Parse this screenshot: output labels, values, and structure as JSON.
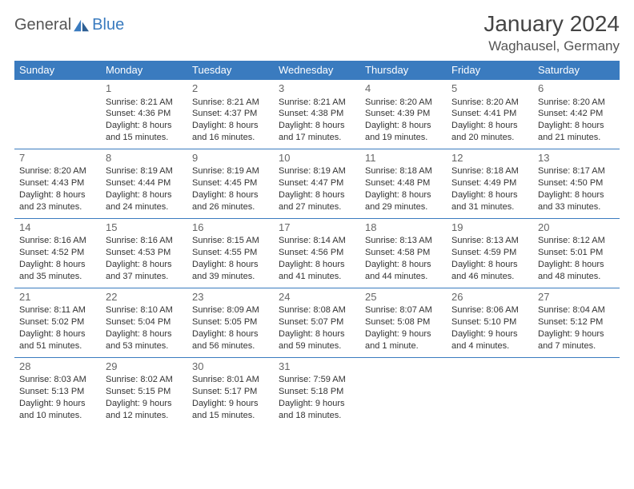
{
  "logo": {
    "part1": "General",
    "part2": "Blue"
  },
  "title": "January 2024",
  "location": "Waghausel, Germany",
  "colors": {
    "header_bg": "#3a7bbf",
    "header_text": "#ffffff",
    "logo_gray": "#555555",
    "logo_blue": "#3a7bbf",
    "text": "#333333",
    "border": "#3a7bbf"
  },
  "weekdays": [
    "Sunday",
    "Monday",
    "Tuesday",
    "Wednesday",
    "Thursday",
    "Friday",
    "Saturday"
  ],
  "weeks": [
    [
      null,
      {
        "n": "1",
        "sr": "Sunrise: 8:21 AM",
        "ss": "Sunset: 4:36 PM",
        "dl": "Daylight: 8 hours and 15 minutes."
      },
      {
        "n": "2",
        "sr": "Sunrise: 8:21 AM",
        "ss": "Sunset: 4:37 PM",
        "dl": "Daylight: 8 hours and 16 minutes."
      },
      {
        "n": "3",
        "sr": "Sunrise: 8:21 AM",
        "ss": "Sunset: 4:38 PM",
        "dl": "Daylight: 8 hours and 17 minutes."
      },
      {
        "n": "4",
        "sr": "Sunrise: 8:20 AM",
        "ss": "Sunset: 4:39 PM",
        "dl": "Daylight: 8 hours and 19 minutes."
      },
      {
        "n": "5",
        "sr": "Sunrise: 8:20 AM",
        "ss": "Sunset: 4:41 PM",
        "dl": "Daylight: 8 hours and 20 minutes."
      },
      {
        "n": "6",
        "sr": "Sunrise: 8:20 AM",
        "ss": "Sunset: 4:42 PM",
        "dl": "Daylight: 8 hours and 21 minutes."
      }
    ],
    [
      {
        "n": "7",
        "sr": "Sunrise: 8:20 AM",
        "ss": "Sunset: 4:43 PM",
        "dl": "Daylight: 8 hours and 23 minutes."
      },
      {
        "n": "8",
        "sr": "Sunrise: 8:19 AM",
        "ss": "Sunset: 4:44 PM",
        "dl": "Daylight: 8 hours and 24 minutes."
      },
      {
        "n": "9",
        "sr": "Sunrise: 8:19 AM",
        "ss": "Sunset: 4:45 PM",
        "dl": "Daylight: 8 hours and 26 minutes."
      },
      {
        "n": "10",
        "sr": "Sunrise: 8:19 AM",
        "ss": "Sunset: 4:47 PM",
        "dl": "Daylight: 8 hours and 27 minutes."
      },
      {
        "n": "11",
        "sr": "Sunrise: 8:18 AM",
        "ss": "Sunset: 4:48 PM",
        "dl": "Daylight: 8 hours and 29 minutes."
      },
      {
        "n": "12",
        "sr": "Sunrise: 8:18 AM",
        "ss": "Sunset: 4:49 PM",
        "dl": "Daylight: 8 hours and 31 minutes."
      },
      {
        "n": "13",
        "sr": "Sunrise: 8:17 AM",
        "ss": "Sunset: 4:50 PM",
        "dl": "Daylight: 8 hours and 33 minutes."
      }
    ],
    [
      {
        "n": "14",
        "sr": "Sunrise: 8:16 AM",
        "ss": "Sunset: 4:52 PM",
        "dl": "Daylight: 8 hours and 35 minutes."
      },
      {
        "n": "15",
        "sr": "Sunrise: 8:16 AM",
        "ss": "Sunset: 4:53 PM",
        "dl": "Daylight: 8 hours and 37 minutes."
      },
      {
        "n": "16",
        "sr": "Sunrise: 8:15 AM",
        "ss": "Sunset: 4:55 PM",
        "dl": "Daylight: 8 hours and 39 minutes."
      },
      {
        "n": "17",
        "sr": "Sunrise: 8:14 AM",
        "ss": "Sunset: 4:56 PM",
        "dl": "Daylight: 8 hours and 41 minutes."
      },
      {
        "n": "18",
        "sr": "Sunrise: 8:13 AM",
        "ss": "Sunset: 4:58 PM",
        "dl": "Daylight: 8 hours and 44 minutes."
      },
      {
        "n": "19",
        "sr": "Sunrise: 8:13 AM",
        "ss": "Sunset: 4:59 PM",
        "dl": "Daylight: 8 hours and 46 minutes."
      },
      {
        "n": "20",
        "sr": "Sunrise: 8:12 AM",
        "ss": "Sunset: 5:01 PM",
        "dl": "Daylight: 8 hours and 48 minutes."
      }
    ],
    [
      {
        "n": "21",
        "sr": "Sunrise: 8:11 AM",
        "ss": "Sunset: 5:02 PM",
        "dl": "Daylight: 8 hours and 51 minutes."
      },
      {
        "n": "22",
        "sr": "Sunrise: 8:10 AM",
        "ss": "Sunset: 5:04 PM",
        "dl": "Daylight: 8 hours and 53 minutes."
      },
      {
        "n": "23",
        "sr": "Sunrise: 8:09 AM",
        "ss": "Sunset: 5:05 PM",
        "dl": "Daylight: 8 hours and 56 minutes."
      },
      {
        "n": "24",
        "sr": "Sunrise: 8:08 AM",
        "ss": "Sunset: 5:07 PM",
        "dl": "Daylight: 8 hours and 59 minutes."
      },
      {
        "n": "25",
        "sr": "Sunrise: 8:07 AM",
        "ss": "Sunset: 5:08 PM",
        "dl": "Daylight: 9 hours and 1 minute."
      },
      {
        "n": "26",
        "sr": "Sunrise: 8:06 AM",
        "ss": "Sunset: 5:10 PM",
        "dl": "Daylight: 9 hours and 4 minutes."
      },
      {
        "n": "27",
        "sr": "Sunrise: 8:04 AM",
        "ss": "Sunset: 5:12 PM",
        "dl": "Daylight: 9 hours and 7 minutes."
      }
    ],
    [
      {
        "n": "28",
        "sr": "Sunrise: 8:03 AM",
        "ss": "Sunset: 5:13 PM",
        "dl": "Daylight: 9 hours and 10 minutes."
      },
      {
        "n": "29",
        "sr": "Sunrise: 8:02 AM",
        "ss": "Sunset: 5:15 PM",
        "dl": "Daylight: 9 hours and 12 minutes."
      },
      {
        "n": "30",
        "sr": "Sunrise: 8:01 AM",
        "ss": "Sunset: 5:17 PM",
        "dl": "Daylight: 9 hours and 15 minutes."
      },
      {
        "n": "31",
        "sr": "Sunrise: 7:59 AM",
        "ss": "Sunset: 5:18 PM",
        "dl": "Daylight: 9 hours and 18 minutes."
      },
      null,
      null,
      null
    ]
  ]
}
